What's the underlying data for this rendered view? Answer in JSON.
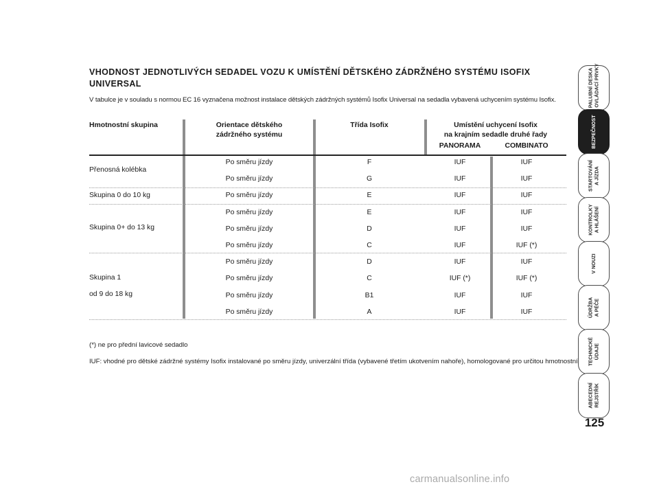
{
  "title": "VHODNOST JEDNOTLIVÝCH SEDADEL VOZU K UMÍSTĚNÍ DĚTSKÉHO ZÁDRŽNÉHO SYSTÉMU ISOFIX UNIVERSAL",
  "intro": "V tabulce je v souladu s normou EC 16 vyznačena možnost instalace dětských zádržných systémů Isofix Universal na sedadla vybavená uchycením systému Isofix.",
  "table": {
    "headers": {
      "group": "Hmotnostní skupina",
      "orientation_line1": "Orientace dětského",
      "orientation_line2": "zádržného systému",
      "isofix_class": "Třída Isofix",
      "position_line1": "Umístění uchycení Isofix",
      "position_line2": "na krajním sedadle druhé řady",
      "panorama": "PANORAMA",
      "combinato": "COMBINATO"
    },
    "groups": [
      {
        "label_line1": "Přenosná kolébka",
        "label_line2": ""
      },
      {
        "label_line1": "Skupina 0 do 10 kg",
        "label_line2": ""
      },
      {
        "label_line1": "Skupina 0+ do 13 kg",
        "label_line2": ""
      },
      {
        "label_line1": "Skupina 1",
        "label_line2": "od 9 do 18 kg"
      }
    ],
    "rows": [
      {
        "orientation": "Po směru jízdy",
        "class": "F",
        "panorama": "IUF",
        "combinato": "IUF"
      },
      {
        "orientation": "Po směru jízdy",
        "class": "G",
        "panorama": "IUF",
        "combinato": "IUF"
      },
      {
        "orientation": "Po směru jízdy",
        "class": "E",
        "panorama": "IUF",
        "combinato": "IUF"
      },
      {
        "orientation": "Po směru jízdy",
        "class": "E",
        "panorama": "IUF",
        "combinato": "IUF"
      },
      {
        "orientation": "Po směru jízdy",
        "class": "D",
        "panorama": "IUF",
        "combinato": "IUF"
      },
      {
        "orientation": "Po směru jízdy",
        "class": "C",
        "panorama": "IUF",
        "combinato": "IUF (*)"
      },
      {
        "orientation": "Po směru jízdy",
        "class": "D",
        "panorama": "IUF",
        "combinato": "IUF"
      },
      {
        "orientation": "Po směru jízdy",
        "class": "C",
        "panorama": "IUF (*)",
        "combinato": "IUF (*)"
      },
      {
        "orientation": "Po směru jízdy",
        "class": "B1",
        "panorama": "IUF",
        "combinato": "IUF"
      },
      {
        "orientation": "Po směru jízdy",
        "class": "A",
        "panorama": "IUF",
        "combinato": "IUF"
      }
    ]
  },
  "footnotes": {
    "note1": "(*) ne pro přední lavicové sedadlo",
    "note2": "IUF: vhodné pro dětské zádržné systémy Isofix instalované po směru jízdy, univerzální třída (vybavené třetím ukotvením nahoře), homologované pro určitou hmotnostní skupinu"
  },
  "sidebar": {
    "tabs": [
      {
        "label": "PALUBNÍ DESKA\nA OVLÁDACÍ PRVKY"
      },
      {
        "label": "BEZPEČNOST"
      },
      {
        "label": "STARTOVÁNÍ\nA JÍZDA"
      },
      {
        "label": "KONTROLKY\nA HLÁŠENÍ"
      },
      {
        "label": "V NOUZI"
      },
      {
        "label": "ÚDRŽBA\nA PÉČE"
      },
      {
        "label": "TECHNICKÉ\nÚDAJE"
      },
      {
        "label": "ABECEDNÍ\nREJSTŘÍK"
      }
    ],
    "active_index": 1
  },
  "page_number": "125",
  "watermark": "carmanualsonline.info"
}
